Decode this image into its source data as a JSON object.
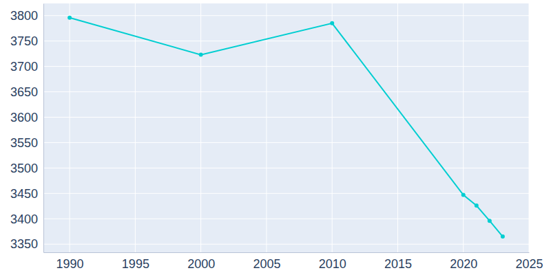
{
  "chart_data": {
    "type": "line",
    "x": [
      1990,
      2000,
      2010,
      2020,
      2021,
      2022,
      2023
    ],
    "values": [
      3796,
      3723,
      3785,
      3447,
      3426,
      3396,
      3365
    ],
    "color": "#00ced1",
    "marker": "circle",
    "xlim": [
      1988,
      2025
    ],
    "xticks": [
      1990,
      1995,
      2000,
      2005,
      2010,
      2015,
      2020,
      2025
    ],
    "ylim": [
      3334,
      3824
    ],
    "yticks": [
      3350,
      3400,
      3450,
      3500,
      3550,
      3600,
      3650,
      3700,
      3750,
      3800
    ],
    "grid": true
  }
}
